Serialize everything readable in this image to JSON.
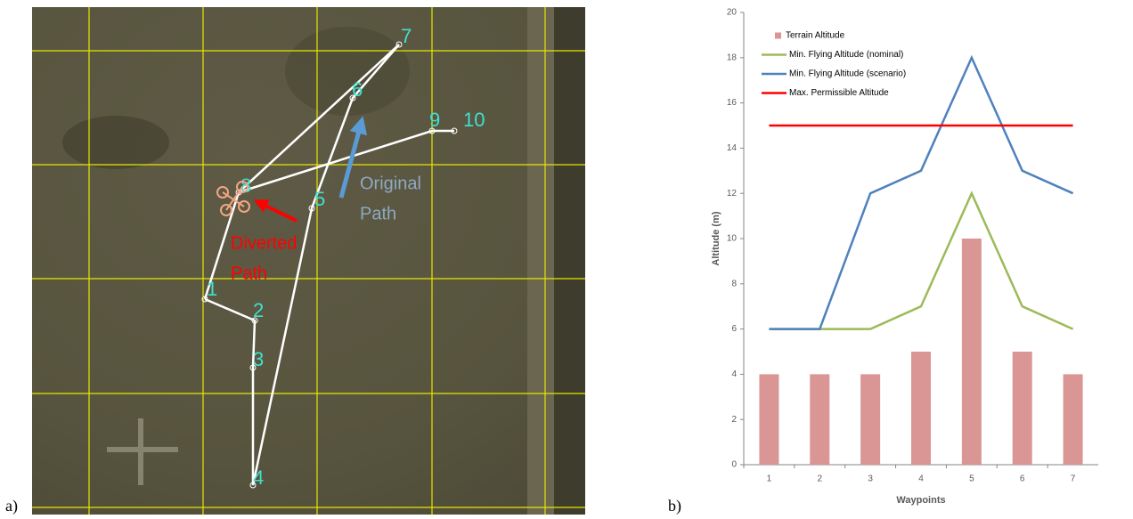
{
  "map": {
    "waypoint_labels": [
      "1",
      "2",
      "3",
      "4",
      "5",
      "6",
      "7",
      "8",
      "9",
      "10"
    ],
    "original_path": [
      "Original",
      "Path"
    ],
    "diverted_path": [
      "Diverted",
      "Path"
    ]
  },
  "panel_labels": [
    "a)",
    "b)"
  ],
  "chart_data": {
    "type": "combo",
    "x_label": "Waypoints",
    "y_label": "Altitude (m)",
    "categories": [
      "1",
      "2",
      "3",
      "4",
      "5",
      "6",
      "7"
    ],
    "ylim": [
      0,
      20
    ],
    "yticks": [
      0,
      2,
      4,
      6,
      8,
      10,
      12,
      14,
      16,
      18,
      20
    ],
    "grid": false,
    "legend": "top-left",
    "series": [
      {
        "name": "Terrain Altitude",
        "type": "bar",
        "color": "#d99694",
        "values": [
          4,
          4,
          4,
          5,
          10,
          5,
          4
        ]
      },
      {
        "name": "Min. Flying Altitude (nominal)",
        "type": "line",
        "color": "#9bbb59",
        "values": [
          6,
          6,
          6,
          7,
          12,
          7,
          6
        ]
      },
      {
        "name": "Min. Flying Altitude (scenario)",
        "type": "line",
        "color": "#4f81bd",
        "values": [
          6,
          6,
          12,
          13,
          18,
          13,
          12
        ]
      },
      {
        "name": "Max. Permissible Altitude",
        "type": "line",
        "color": "#ff0000",
        "values": [
          15,
          15,
          15,
          15,
          15,
          15,
          15
        ]
      }
    ]
  }
}
